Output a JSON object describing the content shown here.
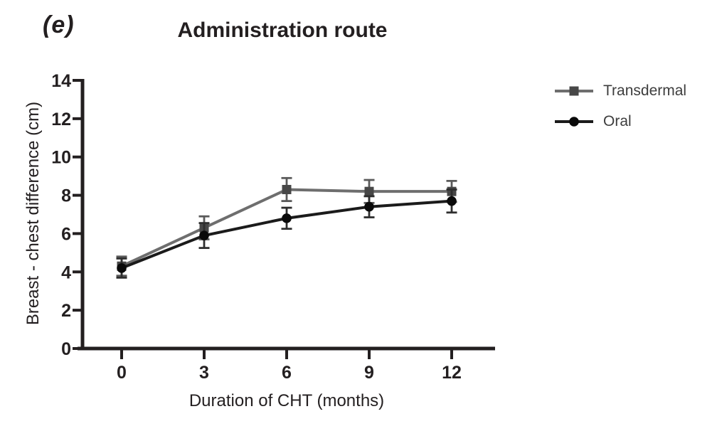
{
  "figure": {
    "panel_label": "(e)",
    "title": "Administration route",
    "background": "#ffffff",
    "axis_color": "#231f20",
    "text_color": "#231f20"
  },
  "legend": {
    "position": "right",
    "items": [
      {
        "label": "Transdermal",
        "marker": "square",
        "line_color": "#6e6e6e",
        "marker_color": "#474747"
      },
      {
        "label": "Oral",
        "marker": "circle",
        "line_color": "#1b1b1b",
        "marker_color": "#0a0a0a"
      }
    ]
  },
  "chart_data": {
    "type": "line",
    "title": "Administration route",
    "xlabel": "Duration of CHT (months)",
    "ylabel": "Breast - chest difference (cm)",
    "x": [
      0,
      3,
      6,
      9,
      12
    ],
    "x_ticks": [
      "0",
      "3",
      "6",
      "9",
      "12"
    ],
    "y_ticks": [
      0,
      2,
      4,
      6,
      8,
      10,
      12,
      14
    ],
    "xlim": [
      -1.6,
      13.6
    ],
    "ylim": [
      0,
      14
    ],
    "grid": false,
    "error_bars": true,
    "legend_position": "right",
    "series": [
      {
        "name": "Transdermal",
        "marker": "square",
        "color": "#6e6e6e",
        "marker_color": "#474747",
        "error_color": "#5a5a5a",
        "values": [
          4.3,
          6.3,
          8.3,
          8.2,
          8.2
        ],
        "errors": [
          0.5,
          0.6,
          0.6,
          0.6,
          0.55
        ]
      },
      {
        "name": "Oral",
        "marker": "circle",
        "color": "#1b1b1b",
        "marker_color": "#0a0a0a",
        "error_color": "#2e2e2e",
        "values": [
          4.2,
          5.9,
          6.8,
          7.4,
          7.7
        ],
        "errors": [
          0.5,
          0.65,
          0.55,
          0.55,
          0.6
        ]
      }
    ]
  }
}
